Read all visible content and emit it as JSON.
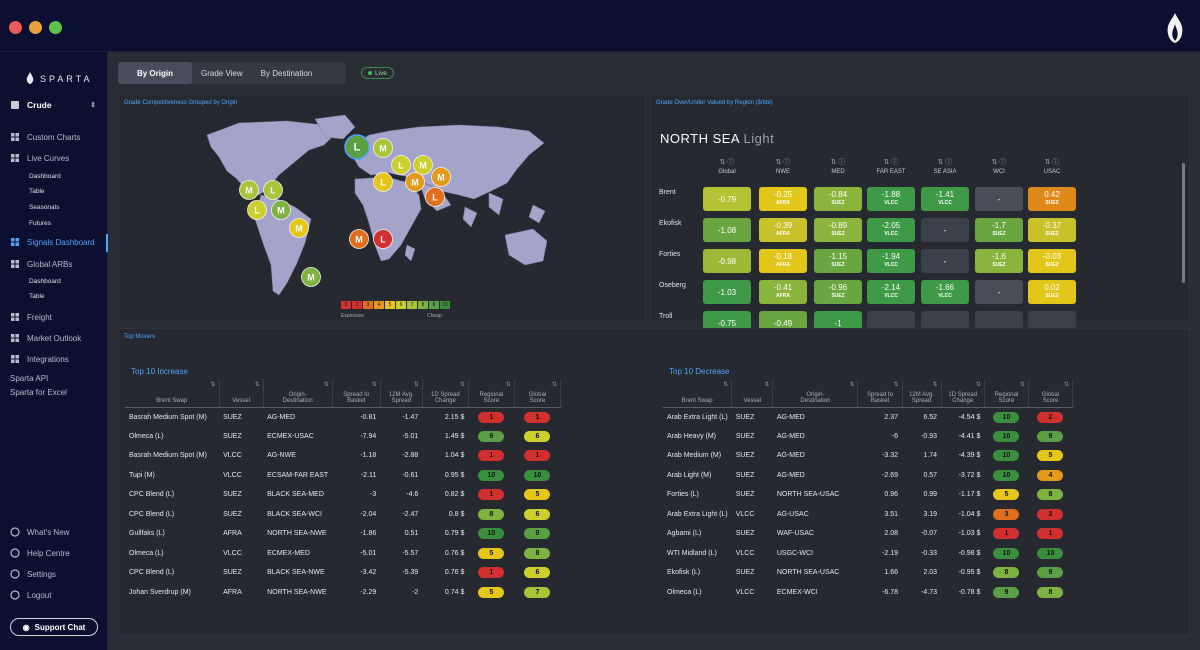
{
  "brand": {
    "name": "SPARTA"
  },
  "sidebar": {
    "commodity": "Crude",
    "items": [
      {
        "label": "Custom Charts",
        "icon": "custom-charts-icon"
      },
      {
        "label": "Live Curves",
        "icon": "live-curves-icon"
      },
      {
        "label": "Dashboard"
      },
      {
        "label": "Table"
      },
      {
        "label": "Seasonals"
      },
      {
        "label": "Futures"
      },
      {
        "label": "Signals Dashboard",
        "icon": "signals-icon"
      },
      {
        "label": "Global ARBs",
        "icon": "globe-icon"
      },
      {
        "label": "Dashboard"
      },
      {
        "label": "Table"
      },
      {
        "label": "Freight",
        "icon": "freight-icon"
      },
      {
        "label": "Market Outlook",
        "icon": "outlook-icon"
      },
      {
        "label": "Integrations",
        "icon": "integrations-icon"
      },
      {
        "label": "Sparta API"
      },
      {
        "label": "Sparta for Excel"
      }
    ],
    "bottom": [
      {
        "label": "What's New",
        "icon": "bell-icon"
      },
      {
        "label": "Help Centre",
        "icon": "help-icon"
      },
      {
        "label": "Settings",
        "icon": "gear-icon"
      },
      {
        "label": "Logout",
        "icon": "logout-icon"
      }
    ],
    "support": "Support Chat"
  },
  "tabs": [
    {
      "label": "By Origin"
    },
    {
      "label": "Grade View"
    },
    {
      "label": "By Destination"
    }
  ],
  "live": "Live",
  "map": {
    "title": "Grade Competitiveness Grouped by Origin",
    "legend": [
      "1",
      "2",
      "3",
      "4",
      "5",
      "6",
      "7",
      "8",
      "9",
      "10"
    ],
    "legend_left": "Expensive",
    "legend_right": "Cheap",
    "markers": [
      {
        "label": "L",
        "score": 9
      },
      {
        "label": "M",
        "score": 7
      },
      {
        "label": "L",
        "score": 6
      },
      {
        "label": "M",
        "score": 6
      },
      {
        "label": "L",
        "score": 5
      },
      {
        "label": "M",
        "score": 4
      },
      {
        "label": "L",
        "score": 3
      },
      {
        "label": "M",
        "score": 4
      },
      {
        "label": "M",
        "score": 7
      },
      {
        "label": "L",
        "score": 7
      },
      {
        "label": "L",
        "score": 6
      },
      {
        "label": "M",
        "score": 8
      },
      {
        "label": "M",
        "score": 5
      },
      {
        "label": "M",
        "score": 3
      },
      {
        "label": "L",
        "score": 1
      },
      {
        "label": "M",
        "score": 8
      }
    ]
  },
  "heatmap": {
    "title": "Grade Over/Under Valued by Region ($/bbl)",
    "region": "NORTH SEA",
    "subregion": "Light",
    "columns": [
      "Global",
      "NWE",
      "MED",
      "FAR EAST",
      "SE ASIA",
      "WCI",
      "USAC"
    ],
    "rows": [
      {
        "name": "Brent",
        "cells": [
          {
            "v": "-0.79",
            "s": "",
            "c": "#b3c233"
          },
          {
            "v": "-0.25",
            "s": "AFRA",
            "c": "#e3c61a"
          },
          {
            "v": "-0.84",
            "s": "SUEZ",
            "c": "#8bb43c"
          },
          {
            "v": "-1.88",
            "s": "VLCC",
            "c": "#3e9a47"
          },
          {
            "v": "-1.41",
            "s": "VLCC",
            "c": "#3e9a47"
          },
          {
            "v": "-",
            "s": "",
            "c": "#4a4e58"
          },
          {
            "v": "0.42",
            "s": "SUEZ",
            "c": "#e0891b"
          }
        ]
      },
      {
        "name": "Ekofisk",
        "cells": [
          {
            "v": "-1.08",
            "s": "",
            "c": "#6aa63f"
          },
          {
            "v": "-0.39",
            "s": "AFRA",
            "c": "#c9c12a"
          },
          {
            "v": "-0.89",
            "s": "SUEZ",
            "c": "#8bb43c"
          },
          {
            "v": "-2.05",
            "s": "VLCC",
            "c": "#3e9a47"
          },
          {
            "v": "-",
            "s": "",
            "c": "#3c404a"
          },
          {
            "v": "-1.7",
            "s": "SUEZ",
            "c": "#6aa63f"
          },
          {
            "v": "-0.37",
            "s": "SUEZ",
            "c": "#c9c12a"
          }
        ]
      },
      {
        "name": "Forties",
        "cells": [
          {
            "v": "-0.98",
            "s": "",
            "c": "#9cba36"
          },
          {
            "v": "-0.18",
            "s": "AFRA",
            "c": "#e3c61a"
          },
          {
            "v": "-1.15",
            "s": "SUEZ",
            "c": "#6aa63f"
          },
          {
            "v": "-1.94",
            "s": "VLCC",
            "c": "#3e9a47"
          },
          {
            "v": "-",
            "s": "",
            "c": "#3c404a"
          },
          {
            "v": "-1.6",
            "s": "SUEZ",
            "c": "#8bb43c"
          },
          {
            "v": "-0.03",
            "s": "SUEZ",
            "c": "#e3c61a"
          }
        ]
      },
      {
        "name": "Oseberg",
        "cells": [
          {
            "v": "-1.03",
            "s": "",
            "c": "#3e9a47"
          },
          {
            "v": "-0.41",
            "s": "AFRA",
            "c": "#8bb43c"
          },
          {
            "v": "-0.96",
            "s": "SUEZ",
            "c": "#6aa63f"
          },
          {
            "v": "-2.14",
            "s": "VLCC",
            "c": "#3e9a47"
          },
          {
            "v": "-1.66",
            "s": "VLCC",
            "c": "#3e9a47"
          },
          {
            "v": "-",
            "s": "",
            "c": "#4a4e58"
          },
          {
            "v": "0.02",
            "s": "SUEZ",
            "c": "#e3c61a"
          }
        ]
      },
      {
        "name": "Troll",
        "cells": [
          {
            "v": "-0.75",
            "s": "",
            "c": "#3e9a47"
          },
          {
            "v": "-0.49",
            "s": "",
            "c": "#6aa63f"
          },
          {
            "v": "-1",
            "s": "",
            "c": "#3e9a47"
          },
          {
            "v": "",
            "s": "",
            "c": "#3c404a"
          },
          {
            "v": "",
            "s": "",
            "c": "#3c404a"
          },
          {
            "v": "",
            "s": "",
            "c": "#3c404a"
          },
          {
            "v": "",
            "s": "",
            "c": "#3c404a"
          }
        ]
      }
    ]
  },
  "movers": {
    "title": "Top Movers",
    "increase_title": "Top 10 Increase",
    "decrease_title": "Top 10 Decrease",
    "headers": [
      "Brent Swap",
      "Vessel",
      "Origin-\nDestination",
      "Spread to\nBasket",
      "12M Avg.\nSpread",
      "1D Spread\nChange",
      "Regional\nScore",
      "Global\nScore"
    ],
    "increase": [
      [
        "Basrah Medium Spot (M)",
        "SUEZ",
        "AG-MED",
        "-0.81",
        "-1.47",
        "2.15 $",
        "1",
        "1"
      ],
      [
        "Olmeca (L)",
        "SUEZ",
        "ECMEX-USAC",
        "-7.94",
        "-5.01",
        "1.49 $",
        "9",
        "6"
      ],
      [
        "Basrah Medium Spot (M)",
        "VLCC",
        "AG-NWE",
        "-1.18",
        "-2.88",
        "1.04 $",
        "1",
        "1"
      ],
      [
        "Tupi (M)",
        "VLCC",
        "ECSAM-FAR EAST",
        "-2.11",
        "-0.61",
        "0.95 $",
        "10",
        "10"
      ],
      [
        "CPC Blend (L)",
        "SUEZ",
        "BLACK SEA-MED",
        "-3",
        "-4.6",
        "0.82 $",
        "1",
        "5"
      ],
      [
        "CPC Blend (L)",
        "SUEZ",
        "BLACK SEA-WCI",
        "-2.04",
        "-2.47",
        "0.8 $",
        "8",
        "6"
      ],
      [
        "Gullfaks (L)",
        "AFRA",
        "NORTH SEA-NWE",
        "-1.86",
        "0.51",
        "0.79 $",
        "10",
        "9"
      ],
      [
        "Olmeca (L)",
        "VLCC",
        "ECMEX-MED",
        "-5.01",
        "-5.57",
        "0.76 $",
        "5",
        "8"
      ],
      [
        "CPC Blend (L)",
        "SUEZ",
        "BLACK SEA-NWE",
        "-3.42",
        "-5.39",
        "0.76 $",
        "1",
        "6"
      ],
      [
        "Johan Sverdrup (M)",
        "AFRA",
        "NORTH SEA-NWE",
        "-2.29",
        "-2",
        "0.74 $",
        "5",
        "7"
      ]
    ],
    "decrease": [
      [
        "Arab Extra Light (L)",
        "SUEZ",
        "AG-MED",
        "2.37",
        "6.52",
        "-4.54 $",
        "10",
        "2"
      ],
      [
        "Arab Heavy (M)",
        "SUEZ",
        "AG-MED",
        "-6",
        "-0.93",
        "-4.41 $",
        "10",
        "9"
      ],
      [
        "Arab Medium (M)",
        "SUEZ",
        "AG-MED",
        "-3.32",
        "1.74",
        "-4.39 $",
        "10",
        "5"
      ],
      [
        "Arab Light (M)",
        "SUEZ",
        "AG-MED",
        "-2.69",
        "0.57",
        "-3.72 $",
        "10",
        "4"
      ],
      [
        "Forties (L)",
        "SUEZ",
        "NORTH SEA-USAC",
        "0.96",
        "0.99",
        "-1.17 $",
        "5",
        "8"
      ],
      [
        "Arab Extra Light (L)",
        "VLCC",
        "AG-USAC",
        "3.51",
        "3.19",
        "-1.04 $",
        "3",
        "2"
      ],
      [
        "Agbami (L)",
        "SUEZ",
        "WAF-USAC",
        "2.08",
        "-0.07",
        "-1.03 $",
        "1",
        "1"
      ],
      [
        "WTI Midland (L)",
        "VLCC",
        "USGC-WCI",
        "-2.19",
        "-0.33",
        "-0.98 $",
        "10",
        "10"
      ],
      [
        "Ekofisk (L)",
        "SUEZ",
        "NORTH SEA-USAC",
        "1.66",
        "2.03",
        "-0.95 $",
        "8",
        "9"
      ],
      [
        "Olmeca (L)",
        "VLCC",
        "ECMEX-WCI",
        "-6.78",
        "-4.73",
        "-0.78 $",
        "9",
        "8"
      ]
    ]
  },
  "colors": {
    "accent": "#4fa3ff",
    "score": [
      "#d22f2f",
      "#d22f2f",
      "#e26f1d",
      "#e39a19",
      "#e6c719",
      "#cdd02b",
      "#a8c439",
      "#7fb341",
      "#5a9f44",
      "#3a8f3f"
    ]
  }
}
